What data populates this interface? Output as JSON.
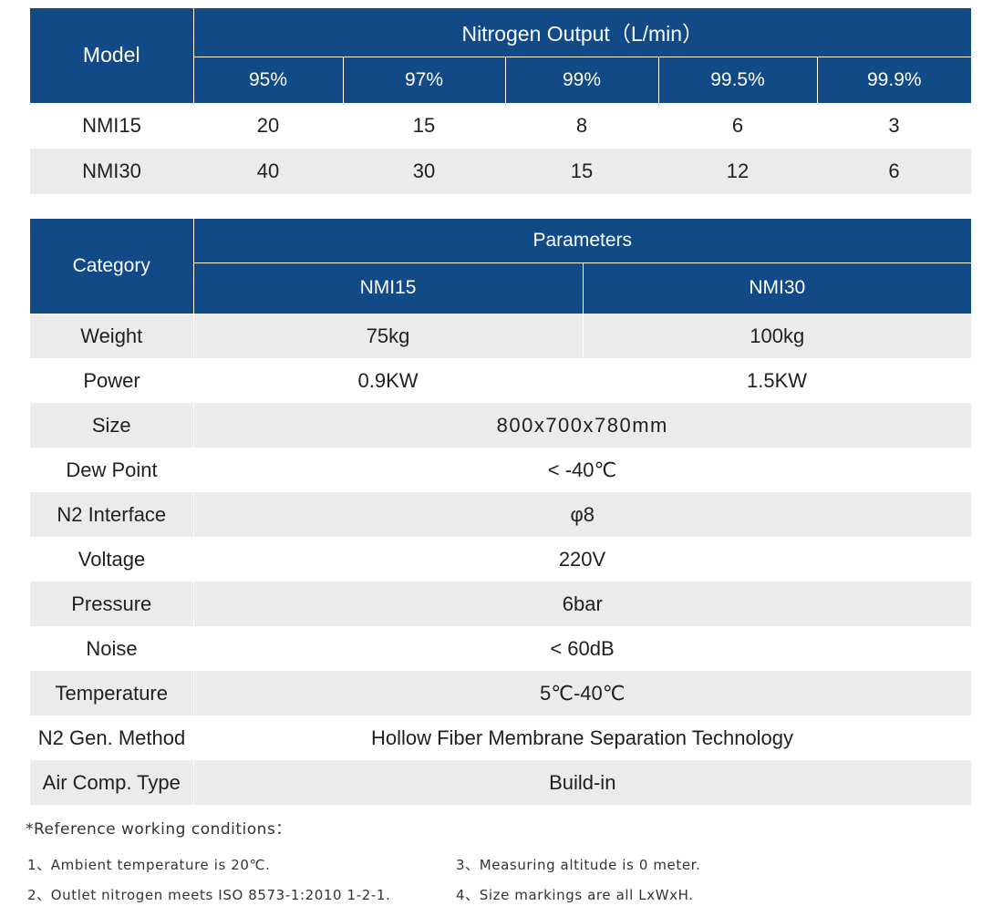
{
  "output_table": {
    "model_header": "Model",
    "group_header": "Nitrogen Output（L/min）",
    "purities": [
      "95%",
      "97%",
      "99%",
      "99.5%",
      "99.9%"
    ],
    "rows": [
      {
        "model": "NMI15",
        "values": [
          "20",
          "15",
          "8",
          "6",
          "3"
        ]
      },
      {
        "model": "NMI30",
        "values": [
          "40",
          "30",
          "15",
          "12",
          "6"
        ]
      }
    ]
  },
  "params_table": {
    "category_header": "Category",
    "group_header": "Parameters",
    "models": [
      "NMI15",
      "NMI30"
    ],
    "split_rows": [
      {
        "label": "Weight",
        "values": [
          "75kg",
          "100kg"
        ]
      },
      {
        "label": "Power",
        "values": [
          "0.9KW",
          "1.5KW"
        ]
      }
    ],
    "merged_rows": [
      {
        "label": "Size",
        "value": "800x700x780mm"
      },
      {
        "label": "Dew Point",
        "value": "< -40℃"
      },
      {
        "label": "N2 Interface",
        "value": "φ8"
      },
      {
        "label": "Voltage",
        "value": "220V"
      },
      {
        "label": "Pressure",
        "value": "6bar"
      },
      {
        "label": "Noise",
        "value": "< 60dB"
      },
      {
        "label": "Temperature",
        "value": "5℃-40℃"
      },
      {
        "label": "N2 Gen. Method",
        "value": "Hollow Fiber Membrane Separation Technology"
      },
      {
        "label": "Air Comp. Type",
        "value": "Build-in"
      }
    ]
  },
  "notes": {
    "title": "*Reference working conditions：",
    "items": [
      "1、Ambient temperature is 20℃.",
      "2、Outlet nitrogen meets ISO 8573-1:2010 1-2-1.",
      "3、Measuring altitude is 0 meter.",
      "4、Size markings are all LxWxH."
    ]
  }
}
